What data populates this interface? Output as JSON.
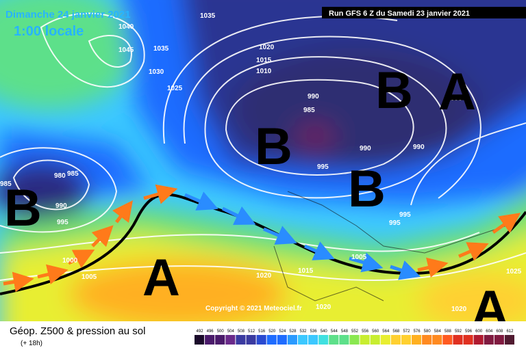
{
  "header": {
    "date": "Dimanche 24 janvier 2021",
    "time": "1:00 locale",
    "run": "Run GFS 6 Z du Samedi 23 janvier 2021"
  },
  "footer": {
    "title": "Géop. Z500 & pression au sol",
    "lead": "(+ 18h)",
    "copyright": "Copyright © 2021 Meteociel.fr"
  },
  "isobar_labels": [
    "1035",
    "1040",
    "1045",
    "1035",
    "1030",
    "1025",
    "1020",
    "1015",
    "1010",
    "990",
    "985",
    "995",
    "990",
    "990",
    "995",
    "985",
    "980",
    "985",
    "990",
    "995",
    "995",
    "995",
    "1000",
    "1005",
    "1020",
    "1015",
    "1005",
    "1025",
    "1020",
    "1020"
  ],
  "pressure_centers": [
    "B",
    "B",
    "B",
    "B",
    "A",
    "A",
    "A"
  ],
  "colorbar": {
    "labels": [
      492,
      496,
      500,
      504,
      508,
      512,
      516,
      520,
      524,
      528,
      532,
      536,
      540,
      544,
      548,
      552,
      556,
      560,
      564,
      568,
      572,
      576,
      580,
      584,
      588,
      592,
      596,
      600,
      604,
      608,
      612
    ]
  }
}
